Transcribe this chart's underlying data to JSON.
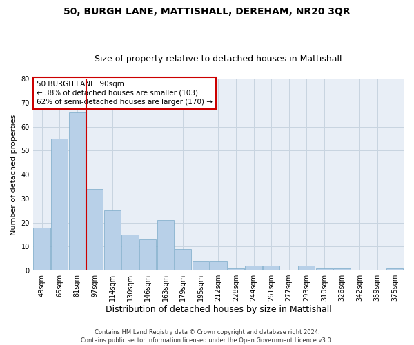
{
  "title": "50, BURGH LANE, MATTISHALL, DEREHAM, NR20 3QR",
  "subtitle": "Size of property relative to detached houses in Mattishall",
  "xlabel": "Distribution of detached houses by size in Mattishall",
  "ylabel": "Number of detached properties",
  "categories": [
    "48sqm",
    "65sqm",
    "81sqm",
    "97sqm",
    "114sqm",
    "130sqm",
    "146sqm",
    "163sqm",
    "179sqm",
    "195sqm",
    "212sqm",
    "228sqm",
    "244sqm",
    "261sqm",
    "277sqm",
    "293sqm",
    "310sqm",
    "326sqm",
    "342sqm",
    "359sqm",
    "375sqm"
  ],
  "values": [
    18,
    55,
    66,
    34,
    25,
    15,
    13,
    21,
    9,
    4,
    4,
    1,
    2,
    2,
    0,
    2,
    1,
    1,
    0,
    0,
    1
  ],
  "bar_color": "#b8d0e8",
  "bar_edge_color": "#7aaac8",
  "vline_x": 2.5,
  "vline_color": "#cc0000",
  "annotation_title": "50 BURGH LANE: 90sqm",
  "annotation_line1": "← 38% of detached houses are smaller (103)",
  "annotation_line2": "62% of semi-detached houses are larger (170) →",
  "annotation_box_facecolor": "#ffffff",
  "annotation_box_edgecolor": "#cc0000",
  "ylim": [
    0,
    80
  ],
  "yticks": [
    0,
    10,
    20,
    30,
    40,
    50,
    60,
    70,
    80
  ],
  "grid_color": "#c8d4e0",
  "bg_color": "#e8eef6",
  "fig_facecolor": "#ffffff",
  "footer_line1": "Contains HM Land Registry data © Crown copyright and database right 2024.",
  "footer_line2": "Contains public sector information licensed under the Open Government Licence v3.0.",
  "title_fontsize": 10,
  "subtitle_fontsize": 9,
  "ylabel_fontsize": 8,
  "xlabel_fontsize": 9,
  "tick_fontsize": 7,
  "annot_fontsize": 7.5,
  "footer_fontsize": 6
}
